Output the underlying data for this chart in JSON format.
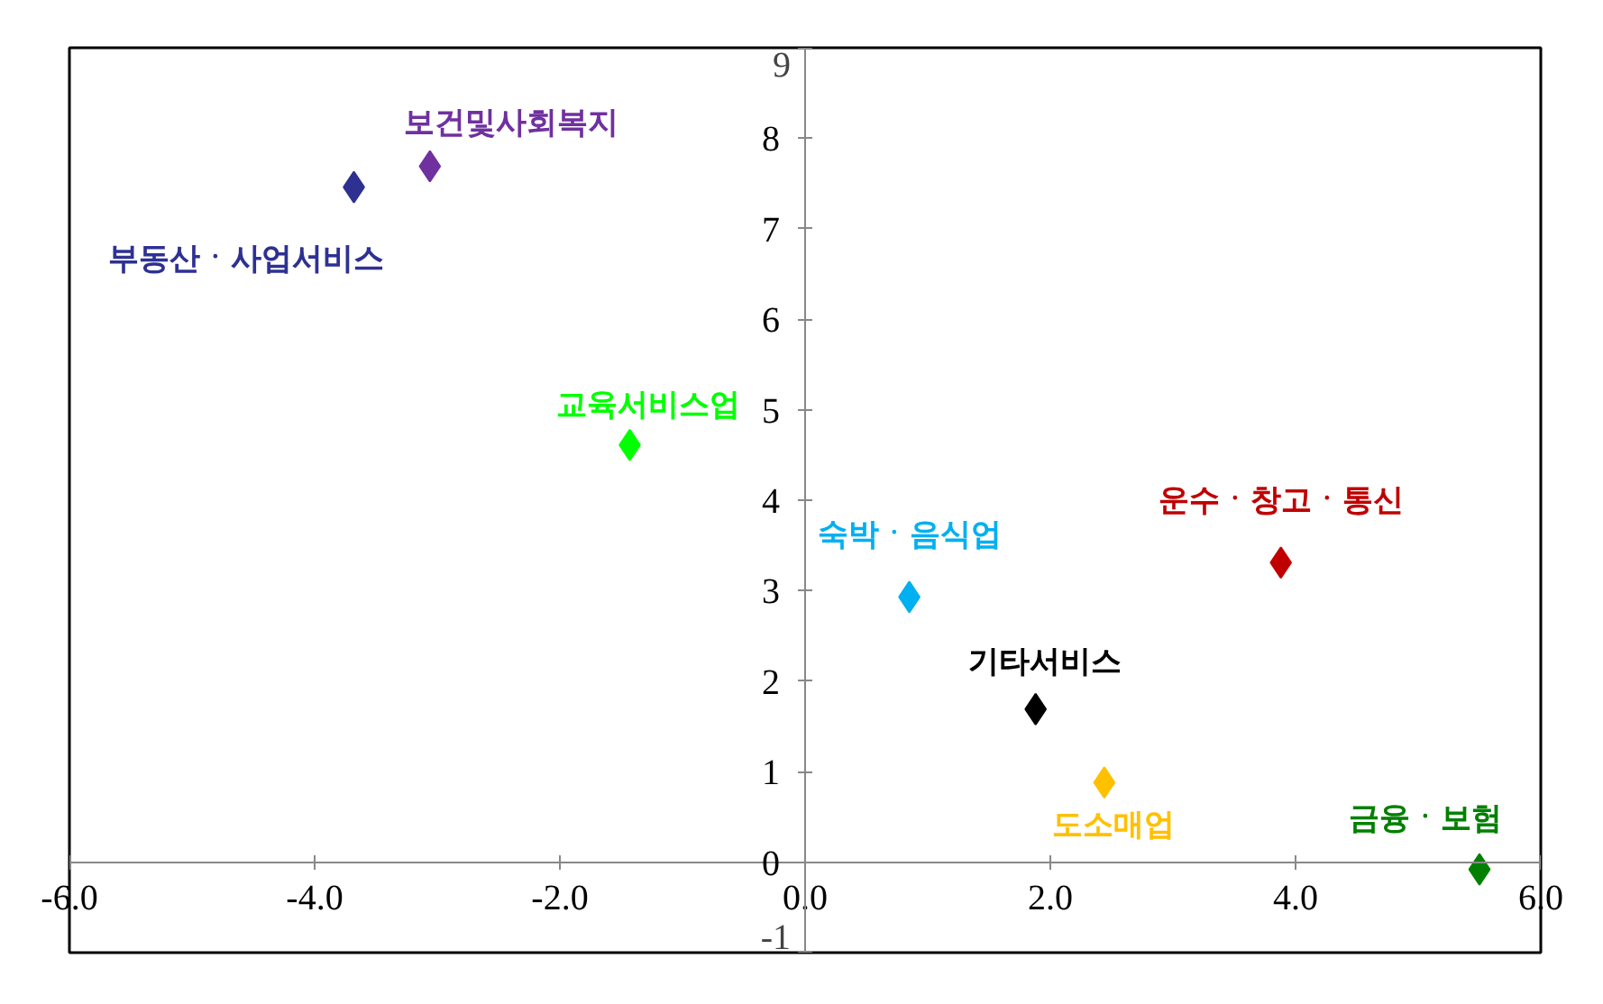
{
  "chart_data": {
    "type": "scatter",
    "marker": "diamond",
    "legend": false,
    "grid": false,
    "xlim": [
      -6,
      6
    ],
    "ylim": [
      -1,
      9
    ],
    "xticks": [
      {
        "value": -6,
        "label": "-6.0"
      },
      {
        "value": -4,
        "label": "-4.0"
      },
      {
        "value": -2,
        "label": "-2.0"
      },
      {
        "value": 0,
        "label": "0.0"
      },
      {
        "value": 2,
        "label": "2.0"
      },
      {
        "value": 4,
        "label": "4.0"
      },
      {
        "value": 6,
        "label": "6.0"
      }
    ],
    "yticks": [
      -1,
      0,
      1,
      2,
      3,
      4,
      5,
      6,
      7,
      8,
      9
    ],
    "series": [
      {
        "name": "부동산ㆍ사업서비스",
        "color": "#2e3192",
        "x": [
          -3.68
        ],
        "values": [
          7.46
        ]
      },
      {
        "name": "보건및사회복지",
        "color": "#7030a0",
        "x": [
          -3.06
        ],
        "values": [
          7.69
        ]
      },
      {
        "name": "교육서비스업",
        "color": "#00ff00",
        "x": [
          -1.43
        ],
        "values": [
          4.61
        ]
      },
      {
        "name": "숙박ㆍ음식업",
        "color": "#00b0f0",
        "x": [
          0.85
        ],
        "values": [
          2.93
        ]
      },
      {
        "name": "운수ㆍ창고ㆍ통신",
        "color": "#c00000",
        "x": [
          3.88
        ],
        "values": [
          3.31
        ]
      },
      {
        "name": "기타서비스",
        "color": "#000000",
        "x": [
          1.88
        ],
        "values": [
          1.69
        ]
      },
      {
        "name": "도소매업",
        "color": "#ffc000",
        "x": [
          2.44
        ],
        "values": [
          0.88
        ]
      },
      {
        "name": "금융ㆍ보험",
        "color": "#008000",
        "x": [
          5.5
        ],
        "values": [
          -0.08
        ]
      }
    ]
  }
}
